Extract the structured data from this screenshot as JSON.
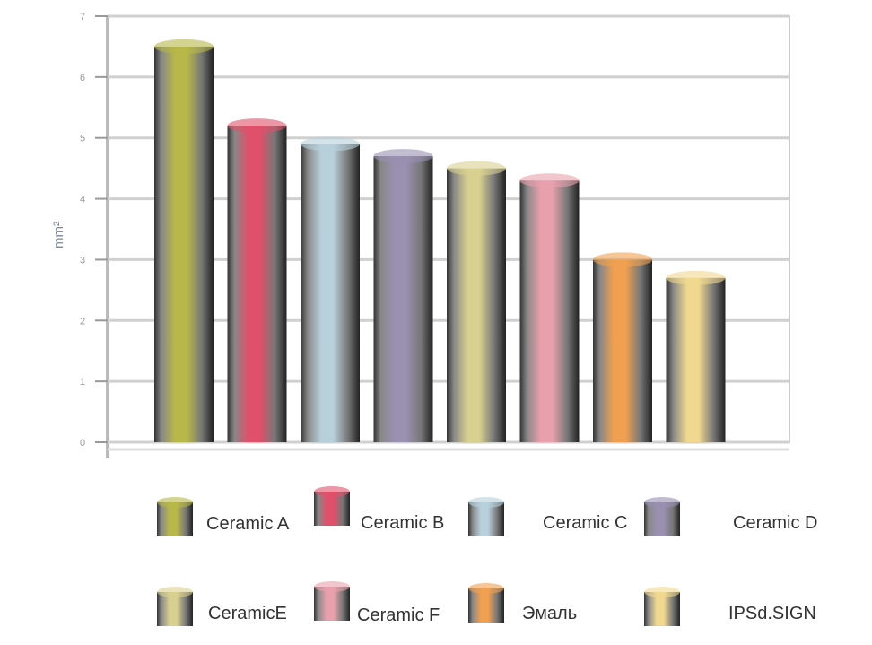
{
  "chart_data": {
    "type": "bar",
    "style": "3d-cylinder",
    "categories": [
      "Ceramic A",
      "Ceramic B",
      "Ceramic C",
      "Ceramic D",
      "CeramicE",
      "Ceramic F",
      "Эмаль",
      "IPSd.SIGN"
    ],
    "values": [
      6.5,
      5.2,
      4.9,
      4.7,
      4.5,
      4.3,
      3.0,
      2.7
    ],
    "colors": [
      "#b8b84a",
      "#e0506a",
      "#b8d0dc",
      "#9a90b0",
      "#d8d090",
      "#e8a0ac",
      "#f0a050",
      "#f0d890"
    ],
    "title": "",
    "xlabel": "",
    "ylabel": "mm²",
    "ylim": [
      0,
      7
    ],
    "yticks": [
      "0",
      "1",
      "2",
      "3",
      "4",
      "5",
      "6",
      "7"
    ],
    "grid": true,
    "legend_position": "bottom"
  }
}
